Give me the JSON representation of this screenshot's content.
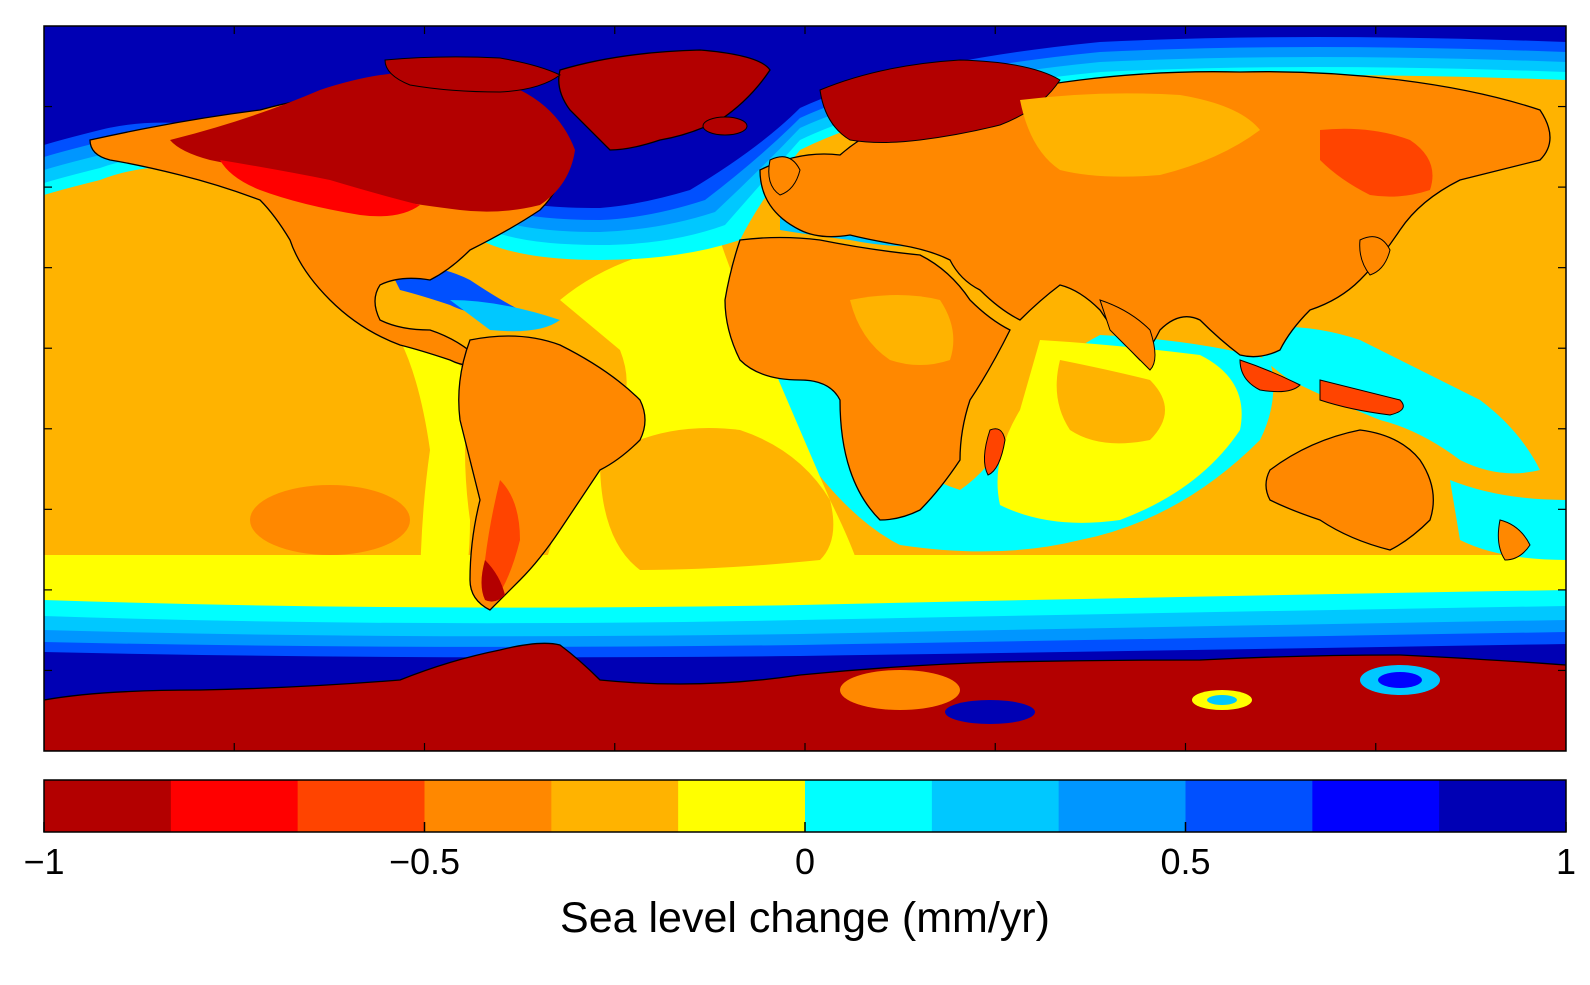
{
  "figure": {
    "colorbar": {
      "ticks": [
        "−1",
        "−0.5",
        "0",
        "0.5",
        "1"
      ],
      "label": "Sea level change (mm/yr)",
      "min": -1,
      "max": 1,
      "levels": [
        {
          "from": -1.0,
          "to": -0.8333,
          "color": "#b30000"
        },
        {
          "from": -0.8333,
          "to": -0.6667,
          "color": "#ff0000"
        },
        {
          "from": -0.6667,
          "to": -0.5,
          "color": "#ff4400"
        },
        {
          "from": -0.5,
          "to": -0.3333,
          "color": "#ff8800"
        },
        {
          "from": -0.3333,
          "to": -0.1667,
          "color": "#ffb300"
        },
        {
          "from": -0.1667,
          "to": 0.0,
          "color": "#ffff00"
        },
        {
          "from": 0.0,
          "to": 0.1667,
          "color": "#00ffff"
        },
        {
          "from": 0.1667,
          "to": 0.3333,
          "color": "#00c8ff"
        },
        {
          "from": 0.3333,
          "to": 0.5,
          "color": "#0096ff"
        },
        {
          "from": 0.5,
          "to": 0.6667,
          "color": "#0050ff"
        },
        {
          "from": 0.6667,
          "to": 0.8333,
          "color": "#0000ff"
        },
        {
          "from": 0.8333,
          "to": 1.0,
          "color": "#0000b4"
        }
      ]
    },
    "map": {
      "projection": "equirectangular",
      "coastlines": true,
      "frame_ticks": true,
      "ocean_background_color": "#ffb300",
      "regions": [
        {
          "name": "Laurentide / Canada uplift",
          "value": -1.0
        },
        {
          "name": "Greenland",
          "value": -1.0
        },
        {
          "name": "Fennoscandia",
          "value": -1.0
        },
        {
          "name": "Antarctica",
          "value": -1.0
        },
        {
          "name": "North Atlantic periphery",
          "value": 0.9
        },
        {
          "name": "Southern Ocean belt",
          "value": 0.6
        },
        {
          "name": "Arctic Ocean",
          "value": 1.0
        },
        {
          "name": "Eurasia",
          "value": -0.45
        },
        {
          "name": "Africa",
          "value": -0.45
        },
        {
          "name": "South America",
          "value": -0.45
        },
        {
          "name": "Australia",
          "value": -0.45
        },
        {
          "name": "Central Atlantic",
          "value": -0.1
        },
        {
          "name": "Indian Ocean",
          "value": -0.1
        },
        {
          "name": "Pacific Ocean",
          "value": -0.25
        }
      ]
    }
  }
}
